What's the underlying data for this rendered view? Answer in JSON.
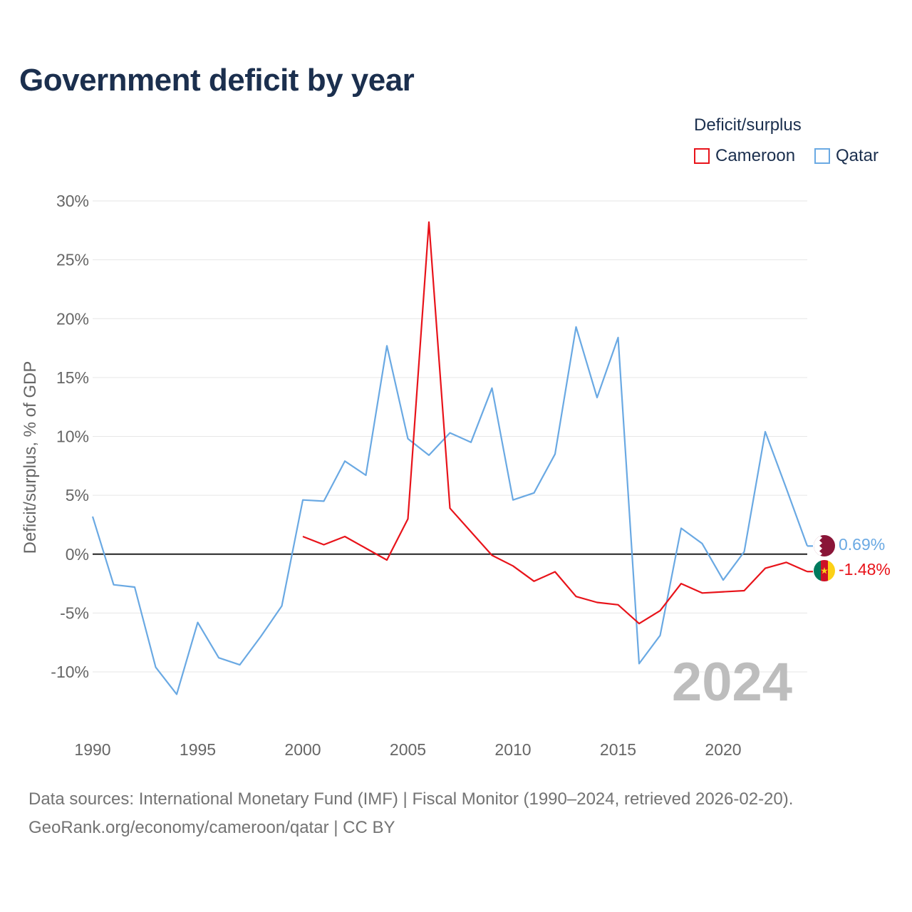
{
  "title": "Government deficit by year",
  "legend": {
    "title": "Deficit/surplus",
    "items": [
      {
        "name": "Cameroon",
        "color": "#e8131a"
      },
      {
        "name": "Qatar",
        "color": "#6aa9e3"
      }
    ]
  },
  "year_watermark": "2024",
  "footer": {
    "line1": "Data sources: International Monetary Fund (IMF) | Fiscal Monitor (1990–2024, retrieved 2026-02-20).",
    "line2": "GeoRank.org/economy/cameroon/qatar | CC BY"
  },
  "chart_data": {
    "type": "line",
    "title": "Government deficit by year",
    "xlabel": "",
    "ylabel": "Deficit/surplus, % of GDP",
    "xlim": [
      1990,
      2024
    ],
    "ylim": [
      -15,
      30
    ],
    "x_ticks": [
      1990,
      1995,
      2000,
      2005,
      2010,
      2015,
      2020
    ],
    "x_tick_labels": [
      "1990",
      "1995",
      "2000",
      "2005",
      "2010",
      "2015",
      "2020"
    ],
    "y_ticks": [
      -10,
      -5,
      0,
      5,
      10,
      15,
      20,
      25,
      30
    ],
    "y_tick_labels": [
      "-10%",
      "-5%",
      "0%",
      "5%",
      "10%",
      "15%",
      "20%",
      "25%",
      "30%"
    ],
    "grid": true,
    "legend_position": "top-right",
    "series": [
      {
        "name": "Qatar",
        "color": "#6aa9e3",
        "end_label": "0.69%",
        "x": [
          1990,
          1991,
          1992,
          1993,
          1994,
          1995,
          1996,
          1997,
          1998,
          1999,
          2000,
          2001,
          2002,
          2003,
          2004,
          2005,
          2006,
          2007,
          2008,
          2009,
          2010,
          2011,
          2012,
          2013,
          2014,
          2015,
          2016,
          2017,
          2018,
          2019,
          2020,
          2021,
          2022,
          2023,
          2024
        ],
        "values": [
          3.2,
          -2.6,
          -2.8,
          -9.6,
          -11.9,
          -5.8,
          -8.8,
          -9.4,
          -7.0,
          -4.4,
          4.6,
          4.5,
          7.9,
          6.7,
          17.7,
          9.8,
          8.4,
          10.3,
          9.5,
          14.1,
          4.6,
          5.2,
          8.5,
          19.3,
          13.3,
          18.4,
          -9.3,
          -6.9,
          2.2,
          0.9,
          -2.2,
          0.2,
          10.4,
          5.6,
          0.69
        ]
      },
      {
        "name": "Cameroon",
        "color": "#e8131a",
        "end_label": "-1.48%",
        "x": [
          2000,
          2001,
          2002,
          2003,
          2004,
          2005,
          2006,
          2007,
          2008,
          2009,
          2010,
          2011,
          2012,
          2013,
          2014,
          2015,
          2016,
          2017,
          2018,
          2019,
          2020,
          2021,
          2022,
          2023,
          2024
        ],
        "values": [
          1.5,
          0.8,
          1.5,
          0.5,
          -0.5,
          3.0,
          28.2,
          3.9,
          1.9,
          -0.1,
          -1.0,
          -2.3,
          -1.5,
          -3.6,
          -4.1,
          -4.3,
          -5.9,
          -4.8,
          -2.5,
          -3.3,
          -3.2,
          -3.1,
          -1.2,
          -0.7,
          -1.48
        ]
      }
    ]
  }
}
